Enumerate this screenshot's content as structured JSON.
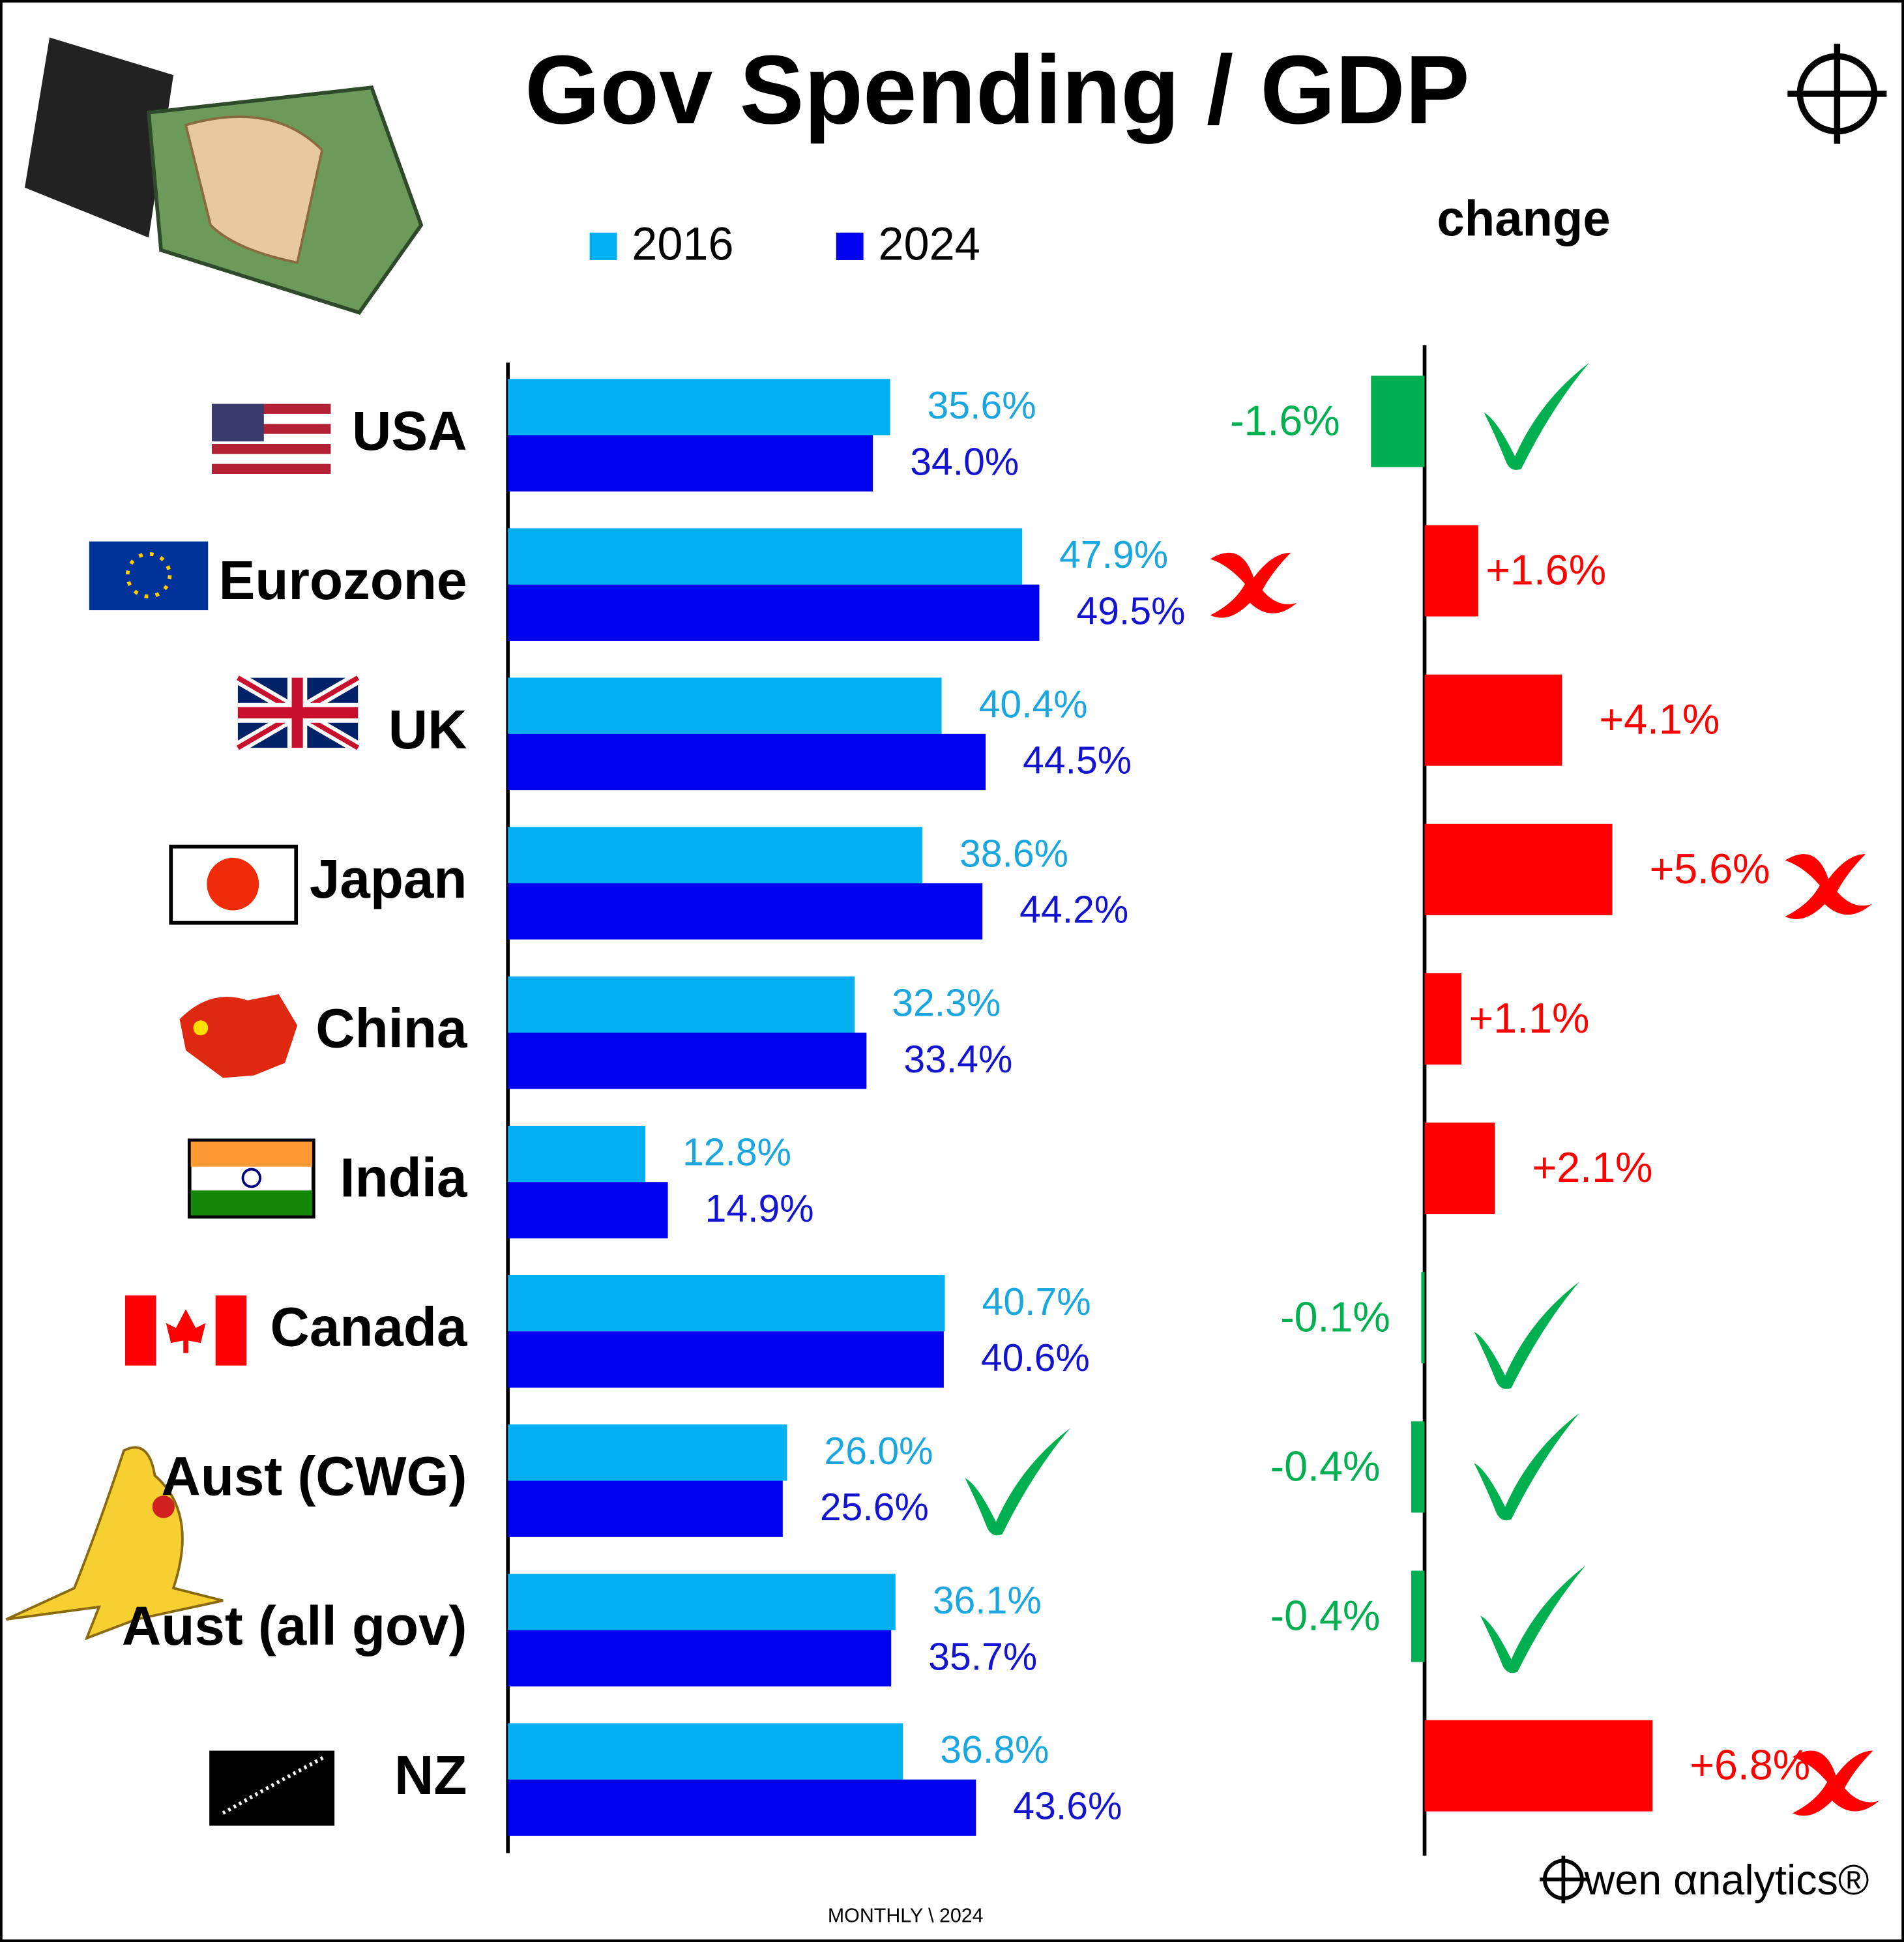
{
  "chart_data": [
    {
      "type": "bar",
      "orientation": "horizontal",
      "title": "Gov Spending / GDP",
      "categories": [
        "USA",
        "Eurozone",
        "UK",
        "Japan",
        "China",
        "India",
        "Canada",
        "Aust (CWG)",
        "Aust (all gov)",
        "NZ"
      ],
      "series": [
        {
          "name": "2016",
          "color": "#00b0f0",
          "label_color": "#1aa7e0",
          "values": [
            35.6,
            47.9,
            40.4,
            38.6,
            32.3,
            12.8,
            40.7,
            26.0,
            36.1,
            36.8
          ],
          "value_labels": [
            "35.6%",
            "47.9%",
            "40.4%",
            "38.6%",
            "32.3%",
            "12.8%",
            "40.7%",
            "26.0%",
            "36.1%",
            "36.8%"
          ]
        },
        {
          "name": "2024",
          "color": "#0000f0",
          "label_color": "#1414d0",
          "values": [
            34.0,
            49.5,
            44.5,
            44.2,
            33.4,
            14.9,
            40.6,
            25.6,
            35.7,
            43.6
          ],
          "value_labels": [
            "34.0%",
            "49.5%",
            "44.5%",
            "44.2%",
            "33.4%",
            "14.9%",
            "40.6%",
            "25.6%",
            "35.7%",
            "43.6%"
          ]
        }
      ]
    },
    {
      "type": "diverging-bar",
      "title": "change",
      "positive_color": "#ff0000",
      "negative_color": "#00b050",
      "values": [
        -1.6,
        1.6,
        4.1,
        5.6,
        1.1,
        2.1,
        -0.1,
        -0.4,
        -0.4,
        6.8
      ],
      "value_labels": [
        "-1.6%",
        "+1.6%",
        "+4.1%",
        "+5.6%",
        "+1.1%",
        "+2.1%",
        "-0.1%",
        "-0.4%",
        "-0.4%",
        "+6.8%"
      ]
    }
  ],
  "footer": "MONTHLY \\ 2024",
  "brand": "wen αnalytics®"
}
